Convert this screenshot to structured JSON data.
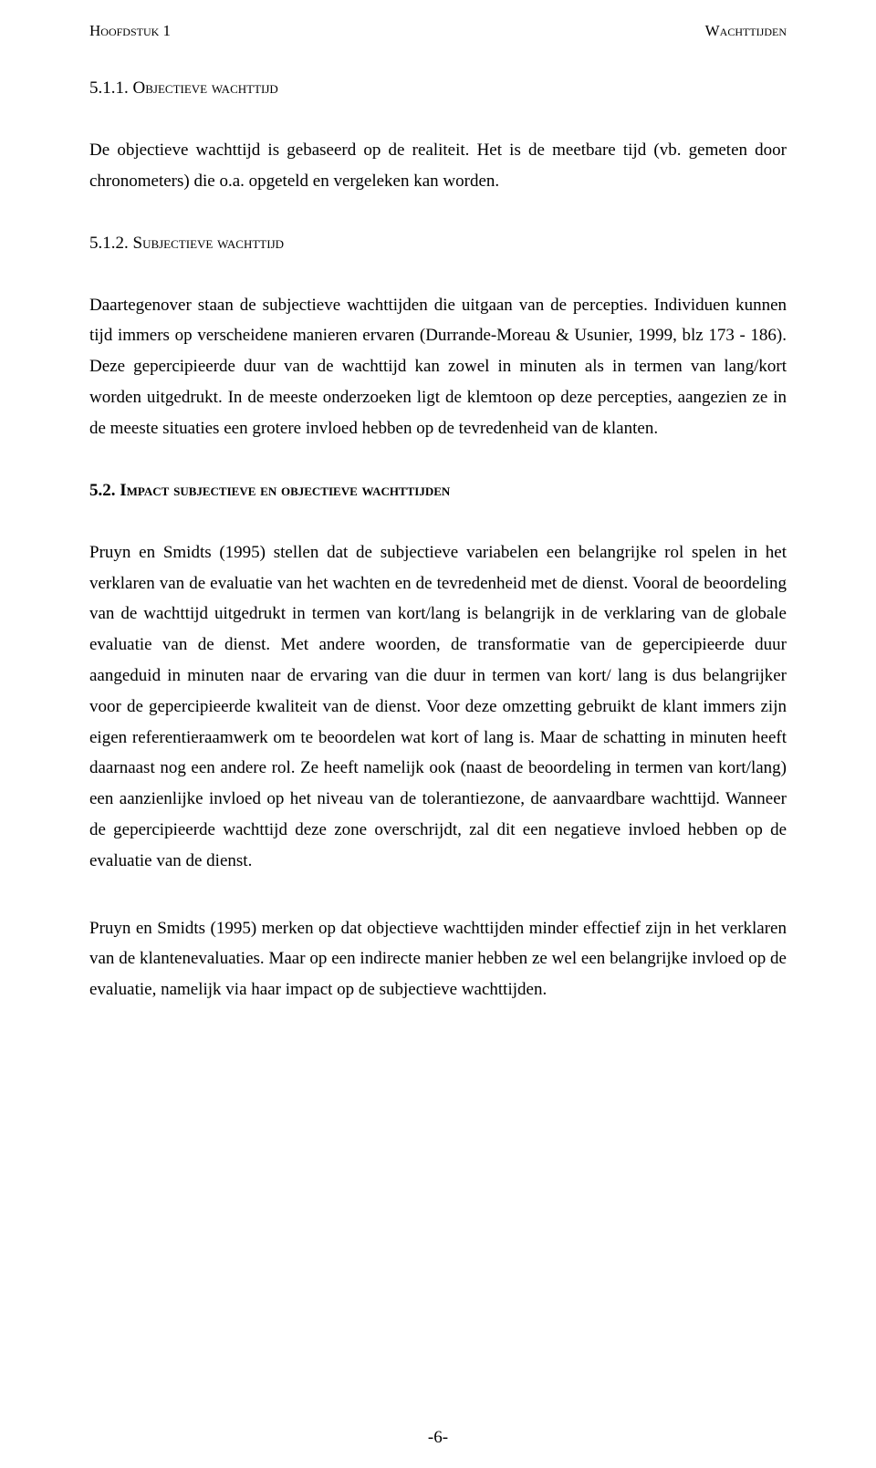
{
  "header": {
    "chapter_label": "Hoofdstuk 1",
    "topic_label": "Wachttijden"
  },
  "section_511": {
    "number": "5.1.1.",
    "title": "Objectieve wachttijd",
    "body": "De objectieve wachttijd is gebaseerd op de realiteit. Het is de meetbare tijd (vb. gemeten door chronometers) die o.a. opgeteld en vergeleken kan worden."
  },
  "section_512": {
    "number": "5.1.2.",
    "title": "Subjectieve wachttijd",
    "body": "Daartegenover staan de subjectieve wachttijden die uitgaan van de percepties. Individuen kunnen tijd immers op verscheidene manieren ervaren (Durrande-Moreau & Usunier, 1999, blz 173 - 186). Deze gepercipieerde duur van de wachttijd kan zowel in minuten als in termen van lang/kort worden uitgedrukt. In de meeste onderzoeken ligt de klemtoon op deze percepties, aangezien ze in de meeste situaties een grotere invloed hebben op de tevredenheid van de klanten."
  },
  "section_52": {
    "number": "5.2.",
    "title": "Impact subjectieve en objectieve wachttijden",
    "body1": "Pruyn en Smidts (1995) stellen dat de subjectieve variabelen een belangrijke rol spelen in het verklaren van de evaluatie van het wachten en de tevredenheid met de dienst. Vooral de beoordeling van de wachttijd uitgedrukt in termen van kort/lang is belangrijk in de verklaring van de globale evaluatie van de dienst. Met andere woorden, de transformatie van de gepercipieerde duur aangeduid in minuten naar de ervaring van die duur in termen van kort/ lang is dus belangrijker voor de gepercipieerde kwaliteit van de dienst. Voor deze omzetting gebruikt de klant immers zijn eigen referentieraamwerk om te beoordelen wat kort of lang is. Maar de schatting in minuten heeft daarnaast nog een andere rol. Ze heeft namelijk ook (naast de beoordeling in termen van kort/lang) een aanzienlijke invloed op het niveau van de tolerantiezone, de aanvaardbare wachttijd.  Wanneer de gepercipieerde wachttijd deze zone overschrijdt, zal dit een negatieve invloed hebben op de evaluatie van de dienst.",
    "body2": "Pruyn en Smidts (1995) merken op dat objectieve wachttijden minder effectief zijn in het verklaren van de klantenevaluaties. Maar op een indirecte manier hebben ze wel een belangrijke invloed op de evaluatie, namelijk via haar impact op de subjectieve wachttijden."
  },
  "page_number": "-6-"
}
